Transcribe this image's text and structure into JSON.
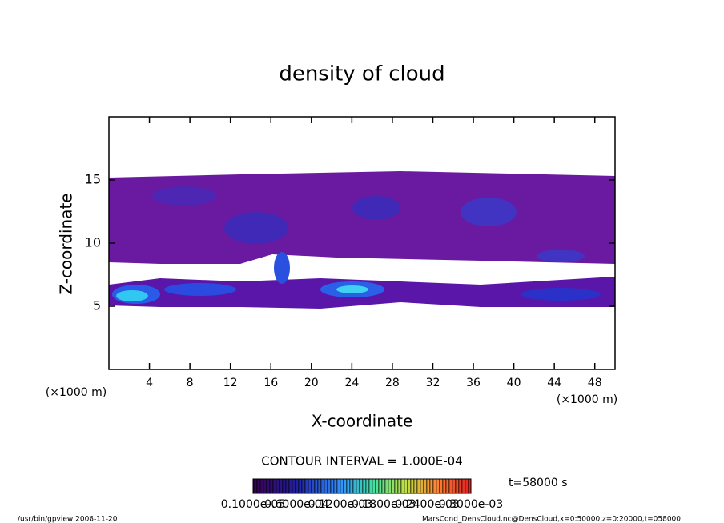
{
  "chart_data": {
    "type": "contour",
    "title": "density of cloud",
    "xlabel": "X-coordinate",
    "ylabel": "Z-coordinate",
    "unit": "(×1000 m)",
    "xlim": [
      0,
      50
    ],
    "ylim": [
      0,
      20
    ],
    "xticks": [
      4,
      8,
      12,
      16,
      20,
      24,
      28,
      32,
      36,
      40,
      44,
      48
    ],
    "yticks": [
      5,
      10,
      15
    ],
    "contour_interval": "CONTOUR INTERVAL = 1.000E-04",
    "time": "t=58000 s",
    "colorbar_labels": [
      "0.1000e-05",
      "0.6000e-04",
      "0.1200e-03",
      "0.1800e-03",
      "0.2400e-03",
      "0.3000e-03"
    ]
  },
  "footer": {
    "left": "/usr/bin/gpview   2008-11-20",
    "right": "MarsCond_DensCloud.nc@DensCloud,x=0:50000,z=0:20000,t=058000"
  }
}
